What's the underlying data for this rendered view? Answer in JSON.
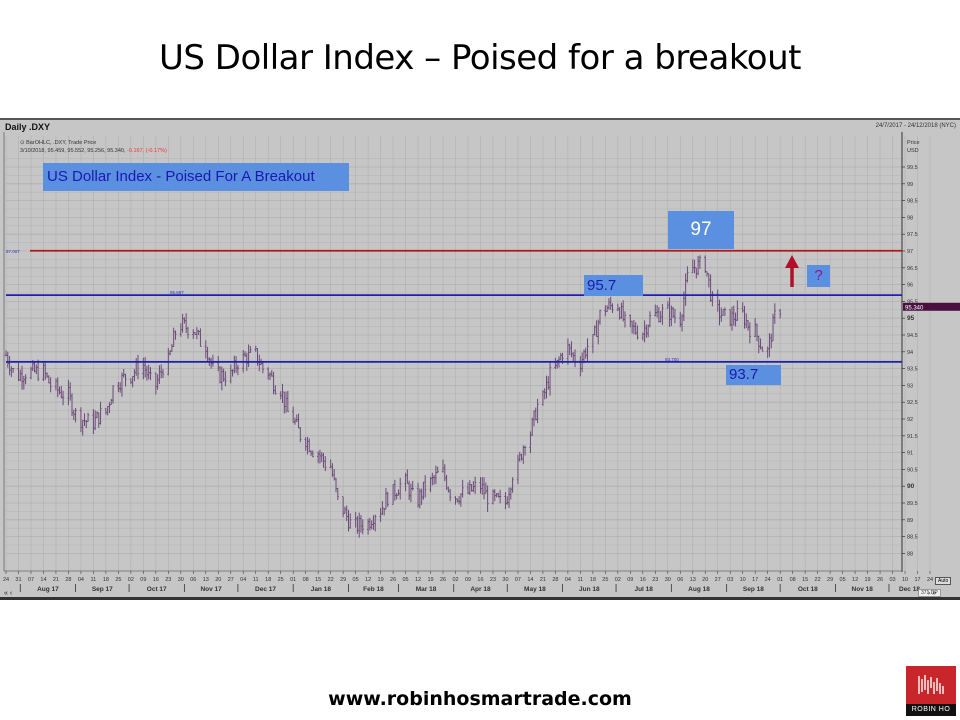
{
  "slide": {
    "title": "US Dollar Index – Poised for a breakout",
    "footer_url": "www.robinhosmartrade.com",
    "logo_text": "ROBIN HO"
  },
  "chart_header": {
    "symbol": "Daily .DXY",
    "date_range": "24/7/2017 - 24/12/2018 (NYC)",
    "legend_series": "BarOHLC, .DXY, Trade Price",
    "legend_values": "3/10/2018, 95.459, 95.552, 95.256, 95.340,",
    "legend_change": "-0.167, (-0.17%)",
    "price_axis_title": "Price",
    "price_axis_unit": "USD",
    "last_price_tag": "95.340",
    "dp_count": "371 DP",
    "auto_button": "Auto",
    "scroll_left": "« ‹",
    "scroll_right": "› »"
  },
  "annotations": {
    "title_box": "US Dollar Index -  Poised For A Breakout",
    "resistance_top_label": "97",
    "resistance_mid_label": "95.7",
    "support_label": "93.7",
    "question": "?",
    "line_97_tag": "97.007",
    "line_957_tag": "95.687",
    "line_937_tag": "93.700"
  },
  "colors": {
    "chart_bg": "#c6c6c6",
    "grid": "#b0b0b0",
    "bar": "#6b4a78",
    "resistance_red": "#b01818",
    "support_blue": "#2020b0",
    "annotation_fill": "#5b8fe0",
    "arrow": "#b0102a",
    "price_tag": "#4a1040"
  },
  "chart_data": {
    "type": "ohlc",
    "title": "US Dollar Index - Poised For A Breakout",
    "symbol": ".DXY",
    "interval": "Daily",
    "xlabel": "",
    "ylabel": "Price USD",
    "ylim": [
      87.5,
      100
    ],
    "y_ticks": [
      88,
      88.5,
      89,
      89.5,
      90,
      90.5,
      91,
      91.5,
      92,
      92.5,
      93,
      93.5,
      94,
      94.5,
      95,
      95.5,
      96,
      96.5,
      97,
      97.5,
      98,
      98.5,
      99,
      99.5
    ],
    "x_month_labels": [
      "Aug 17",
      "Sep 17",
      "Oct 17",
      "Nov 17",
      "Dec 17",
      "Jan 18",
      "Feb 18",
      "Mar 18",
      "Apr 18",
      "May 18",
      "Jun 18",
      "Jul 18",
      "Aug 18",
      "Sep 18",
      "Oct 18",
      "Nov 18",
      "Dec 18"
    ],
    "x_day_ticks": [
      "24",
      "31",
      "07",
      "14",
      "21",
      "28",
      "04",
      "11",
      "18",
      "25",
      "02",
      "09",
      "16",
      "23",
      "30",
      "06",
      "13",
      "20",
      "27",
      "04",
      "11",
      "18",
      "25",
      "01",
      "08",
      "15",
      "22",
      "29",
      "05",
      "12",
      "19",
      "26",
      "05",
      "12",
      "19",
      "26",
      "02",
      "09",
      "16",
      "23",
      "30",
      "07",
      "14",
      "21",
      "28",
      "04",
      "11",
      "18",
      "25",
      "02",
      "09",
      "16",
      "23",
      "30",
      "06",
      "13",
      "20",
      "27",
      "03",
      "10",
      "17",
      "24",
      "01",
      "08",
      "15",
      "22",
      "29",
      "05",
      "12",
      "19",
      "26",
      "03",
      "10",
      "17",
      "24"
    ],
    "grid": true,
    "horizontal_lines": [
      {
        "name": "Resistance",
        "value": 97.007,
        "color": "#b01818"
      },
      {
        "name": "Resistance",
        "value": 95.687,
        "color": "#2020b0"
      },
      {
        "name": "Support",
        "value": 93.7,
        "color": "#2020b0"
      }
    ],
    "last_bar": {
      "date": "3/10/2018",
      "open": 95.459,
      "high": 95.552,
      "low": 95.256,
      "close": 95.34,
      "change": -0.167,
      "change_pct": -0.17
    },
    "weekly_closes_approx": {
      "dates": [
        "2017-07-24",
        "2017-07-31",
        "2017-08-07",
        "2017-08-14",
        "2017-08-21",
        "2017-08-28",
        "2017-09-04",
        "2017-09-11",
        "2017-09-18",
        "2017-09-25",
        "2017-10-02",
        "2017-10-09",
        "2017-10-16",
        "2017-10-23",
        "2017-10-30",
        "2017-11-06",
        "2017-11-13",
        "2017-11-20",
        "2017-11-27",
        "2017-12-04",
        "2017-12-11",
        "2017-12-18",
        "2017-12-25",
        "2018-01-01",
        "2018-01-08",
        "2018-01-15",
        "2018-01-22",
        "2018-01-29",
        "2018-02-05",
        "2018-02-12",
        "2018-02-19",
        "2018-02-26",
        "2018-03-05",
        "2018-03-12",
        "2018-03-19",
        "2018-03-26",
        "2018-04-02",
        "2018-04-09",
        "2018-04-16",
        "2018-04-23",
        "2018-04-30",
        "2018-05-07",
        "2018-05-14",
        "2018-05-21",
        "2018-05-28",
        "2018-06-04",
        "2018-06-11",
        "2018-06-18",
        "2018-06-25",
        "2018-07-02",
        "2018-07-09",
        "2018-07-16",
        "2018-07-23",
        "2018-07-30",
        "2018-08-06",
        "2018-08-13",
        "2018-08-20",
        "2018-08-27",
        "2018-09-03",
        "2018-09-10",
        "2018-09-17",
        "2018-09-24",
        "2018-10-01"
      ],
      "values": [
        93.9,
        93.3,
        93.4,
        93.4,
        92.9,
        92.7,
        92.0,
        91.9,
        92.2,
        93.1,
        93.3,
        93.6,
        93.0,
        93.7,
        94.8,
        94.7,
        94.2,
        93.3,
        93.3,
        93.8,
        93.9,
        93.4,
        92.9,
        92.0,
        91.4,
        91.0,
        90.6,
        89.3,
        88.8,
        88.9,
        89.3,
        89.8,
        90.1,
        89.6,
        90.1,
        90.4,
        89.7,
        89.8,
        90.0,
        89.6,
        89.5,
        90.6,
        91.6,
        92.6,
        93.5,
        94.1,
        93.7,
        94.3,
        95.3,
        95.4,
        94.7,
        94.6,
        95.1,
        95.2,
        95.0,
        96.5,
        96.6,
        95.2,
        95.0,
        95.1,
        94.6,
        94.0,
        95.3
      ]
    }
  }
}
